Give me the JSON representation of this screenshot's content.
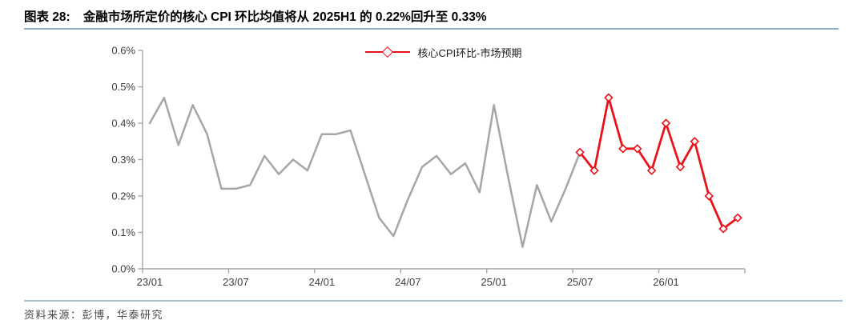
{
  "figure": {
    "label": "图表 28:",
    "title": "金融市场所定价的核心 CPI 环比均值将从 2025H1 的 0.22%回升至 0.33%"
  },
  "footer": {
    "source_text": "资料来源：彭博，华泰研究"
  },
  "colors": {
    "forecast_red": "#E8121A",
    "history_gray": "#A6A6A6",
    "axis_line": "#A6A6A6",
    "axis_text": "#3d3d3d",
    "title_rule_blue": "#8FAECE",
    "footer_rule_blue": "#A9C0DA"
  },
  "chart_data": {
    "type": "line",
    "title": "",
    "xlabel": "",
    "ylabel": "",
    "ylim": [
      0,
      0.6
    ],
    "y_unit": "%",
    "grid": false,
    "legend_position": "top-center",
    "x": [
      "23/01",
      "23/02",
      "23/03",
      "23/04",
      "23/05",
      "23/06",
      "23/07",
      "23/08",
      "23/09",
      "23/10",
      "23/11",
      "23/12",
      "24/01",
      "24/02",
      "24/03",
      "24/04",
      "24/05",
      "24/06",
      "24/07",
      "24/08",
      "24/09",
      "24/10",
      "24/11",
      "24/12",
      "25/01",
      "25/02",
      "25/03",
      "25/04",
      "25/05",
      "25/06",
      "25/07",
      "25/08",
      "25/09",
      "25/10",
      "25/11",
      "25/12",
      "26/01",
      "26/02",
      "26/03",
      "26/04",
      "26/05",
      "26/06"
    ],
    "x_tick_labels": [
      "23/01",
      "23/07",
      "24/01",
      "24/07",
      "25/01",
      "25/07",
      "26/01"
    ],
    "y_tick_labels": [
      "0.0%",
      "0.1%",
      "0.2%",
      "0.3%",
      "0.4%",
      "0.5%",
      "0.6%"
    ],
    "series": [
      {
        "id": "history",
        "label": "",
        "in_legend": false,
        "color": "#A6A6A6",
        "marker": "none",
        "values": [
          0.4,
          0.47,
          0.34,
          0.45,
          0.37,
          0.22,
          0.22,
          0.23,
          0.31,
          0.26,
          0.3,
          0.27,
          0.37,
          0.37,
          0.38,
          0.26,
          0.14,
          0.09,
          0.19,
          0.28,
          0.31,
          0.26,
          0.29,
          0.21,
          0.45,
          0.25,
          0.06,
          0.23,
          0.13,
          0.22,
          0.32,
          null,
          null,
          null,
          null,
          null,
          null,
          null,
          null,
          null,
          null,
          null
        ]
      },
      {
        "id": "forecast",
        "label": "核心CPI环比-市场预期",
        "in_legend": true,
        "color": "#E8121A",
        "marker": "open-diamond",
        "values": [
          null,
          null,
          null,
          null,
          null,
          null,
          null,
          null,
          null,
          null,
          null,
          null,
          null,
          null,
          null,
          null,
          null,
          null,
          null,
          null,
          null,
          null,
          null,
          null,
          null,
          null,
          null,
          null,
          null,
          null,
          0.32,
          0.27,
          0.47,
          0.33,
          0.33,
          0.27,
          0.4,
          0.28,
          0.35,
          0.2,
          0.11,
          0.14
        ]
      }
    ]
  }
}
